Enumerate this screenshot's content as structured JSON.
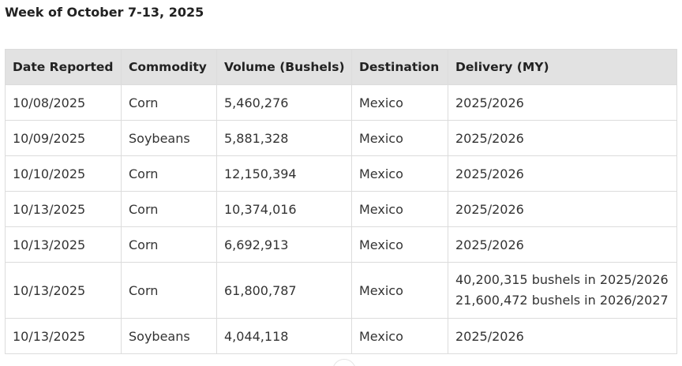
{
  "heading": "Week of October 7-13, 2025",
  "table": {
    "headers": [
      "Date Reported",
      "Commodity",
      "Volume (Bushels)",
      "Destination",
      "Delivery (MY)"
    ],
    "rows": [
      {
        "date": "10/08/2025",
        "commodity": "Corn",
        "volume": "5,460,276",
        "destination": "Mexico",
        "delivery": [
          "2025/2026"
        ]
      },
      {
        "date": "10/09/2025",
        "commodity": "Soybeans",
        "volume": "5,881,328",
        "destination": "Mexico",
        "delivery": [
          "2025/2026"
        ]
      },
      {
        "date": "10/10/2025",
        "commodity": "Corn",
        "volume": "12,150,394",
        "destination": "Mexico",
        "delivery": [
          "2025/2026"
        ]
      },
      {
        "date": "10/13/2025",
        "commodity": "Corn",
        "volume": "10,374,016",
        "destination": "Mexico",
        "delivery": [
          "2025/2026"
        ]
      },
      {
        "date": "10/13/2025",
        "commodity": "Corn",
        "volume": "6,692,913",
        "destination": "Mexico",
        "delivery": [
          "2025/2026"
        ]
      },
      {
        "date": "10/13/2025",
        "commodity": "Corn",
        "volume": "61,800,787",
        "destination": "Mexico",
        "delivery": [
          "40,200,315 bushels in 2025/2026",
          "21,600,472 bushels in 2026/2027"
        ]
      },
      {
        "date": "10/13/2025",
        "commodity": "Soybeans",
        "volume": "4,044,118",
        "destination": "Mexico",
        "delivery": [
          "2025/2026"
        ]
      }
    ]
  }
}
